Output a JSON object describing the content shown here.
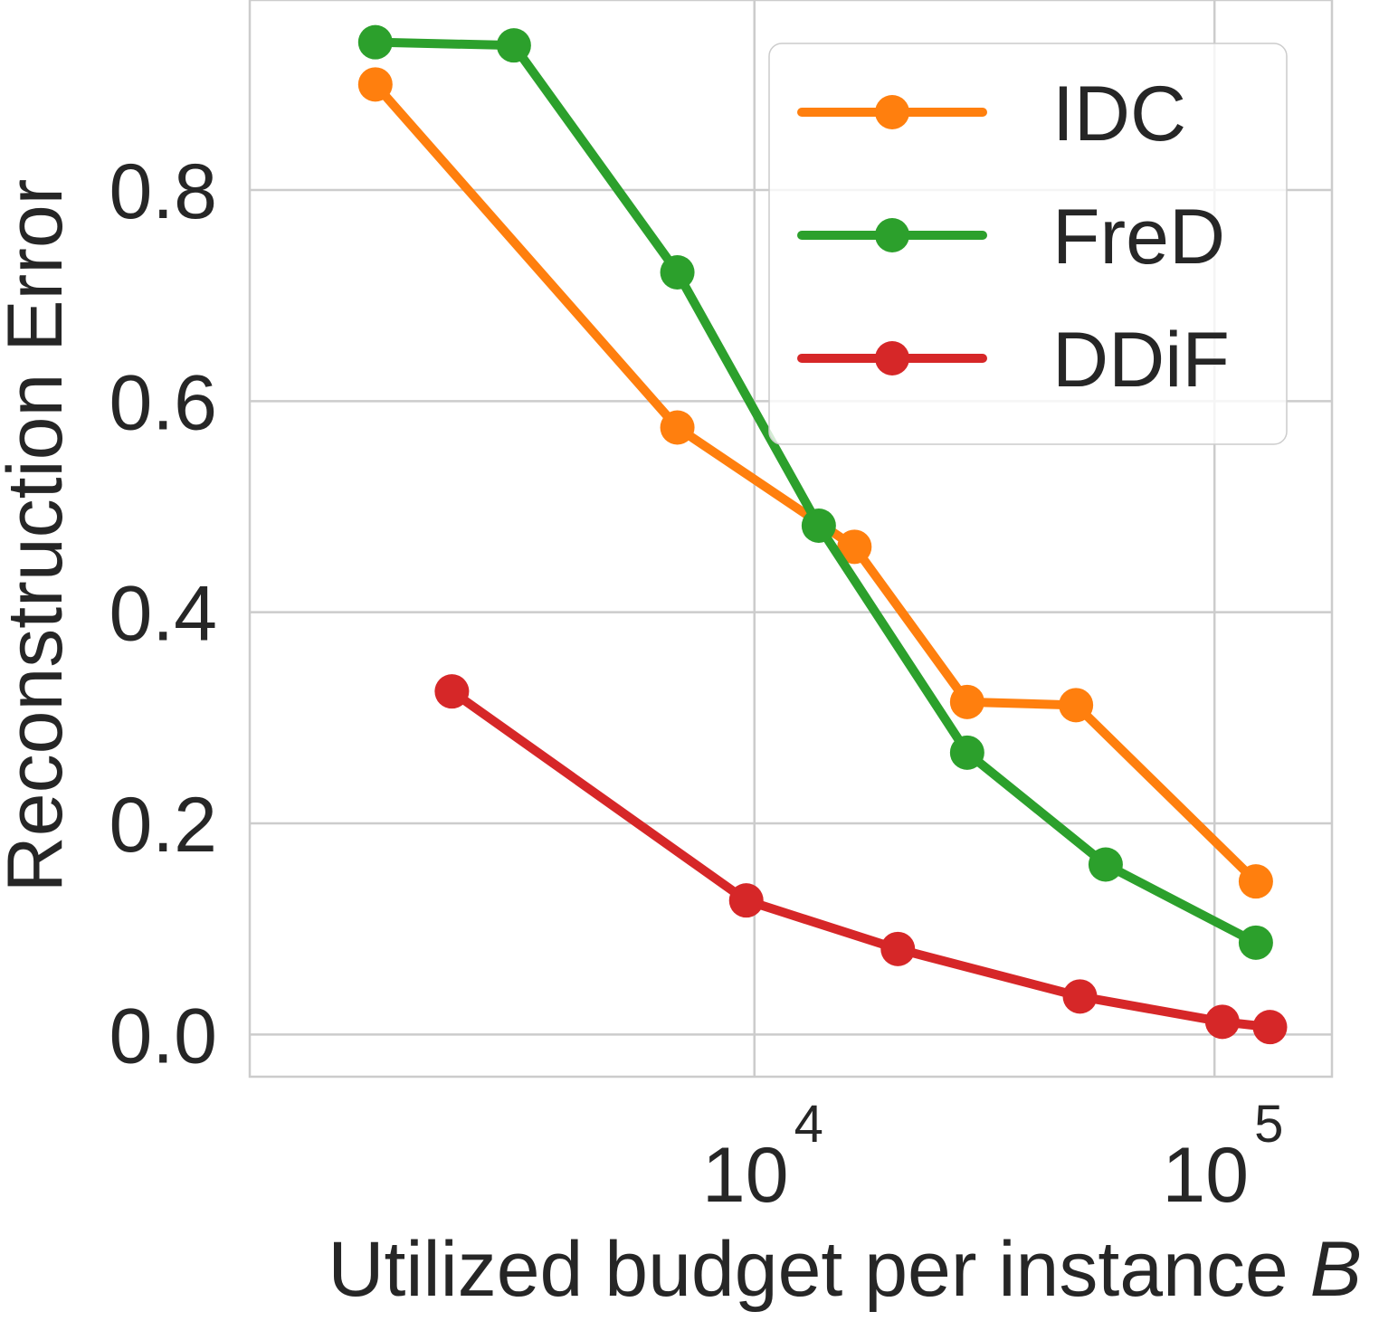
{
  "chart_data": {
    "type": "line",
    "title": "",
    "xlabel": "Utilized budget per instance",
    "xlabel_var": "B",
    "ylabel": "Reconstruction Error",
    "xscale": "log",
    "xlim": [
      800,
      180000
    ],
    "ylim": [
      -0.04,
      0.98
    ],
    "grid": true,
    "legend_position": "top-right",
    "y_ticks": [
      0.0,
      0.2,
      0.4,
      0.6,
      0.8
    ],
    "y_tick_labels": [
      "0.0",
      "0.2",
      "0.4",
      "0.6",
      "0.8"
    ],
    "x_ticks": [
      {
        "value": 10000,
        "base": "10",
        "exp": "4"
      },
      {
        "value": 100000,
        "base": "10",
        "exp": "5"
      }
    ],
    "series": [
      {
        "name": "IDC",
        "color": "#ff7f0e",
        "x": [
          1500,
          6800,
          16500,
          29000,
          50000,
          123000
        ],
        "y": [
          0.9,
          0.575,
          0.462,
          0.315,
          0.312,
          0.145
        ]
      },
      {
        "name": "FreD",
        "color": "#2ca02c",
        "x": [
          1500,
          3000,
          6800,
          13800,
          29000,
          58000,
          123000
        ],
        "y": [
          0.94,
          0.937,
          0.722,
          0.482,
          0.267,
          0.161,
          0.087
        ]
      },
      {
        "name": "DDiF",
        "color": "#d62728",
        "x": [
          2200,
          9600,
          20500,
          51000,
          104000,
          132000
        ],
        "y": [
          0.325,
          0.127,
          0.081,
          0.036,
          0.012,
          0.007
        ]
      }
    ]
  }
}
